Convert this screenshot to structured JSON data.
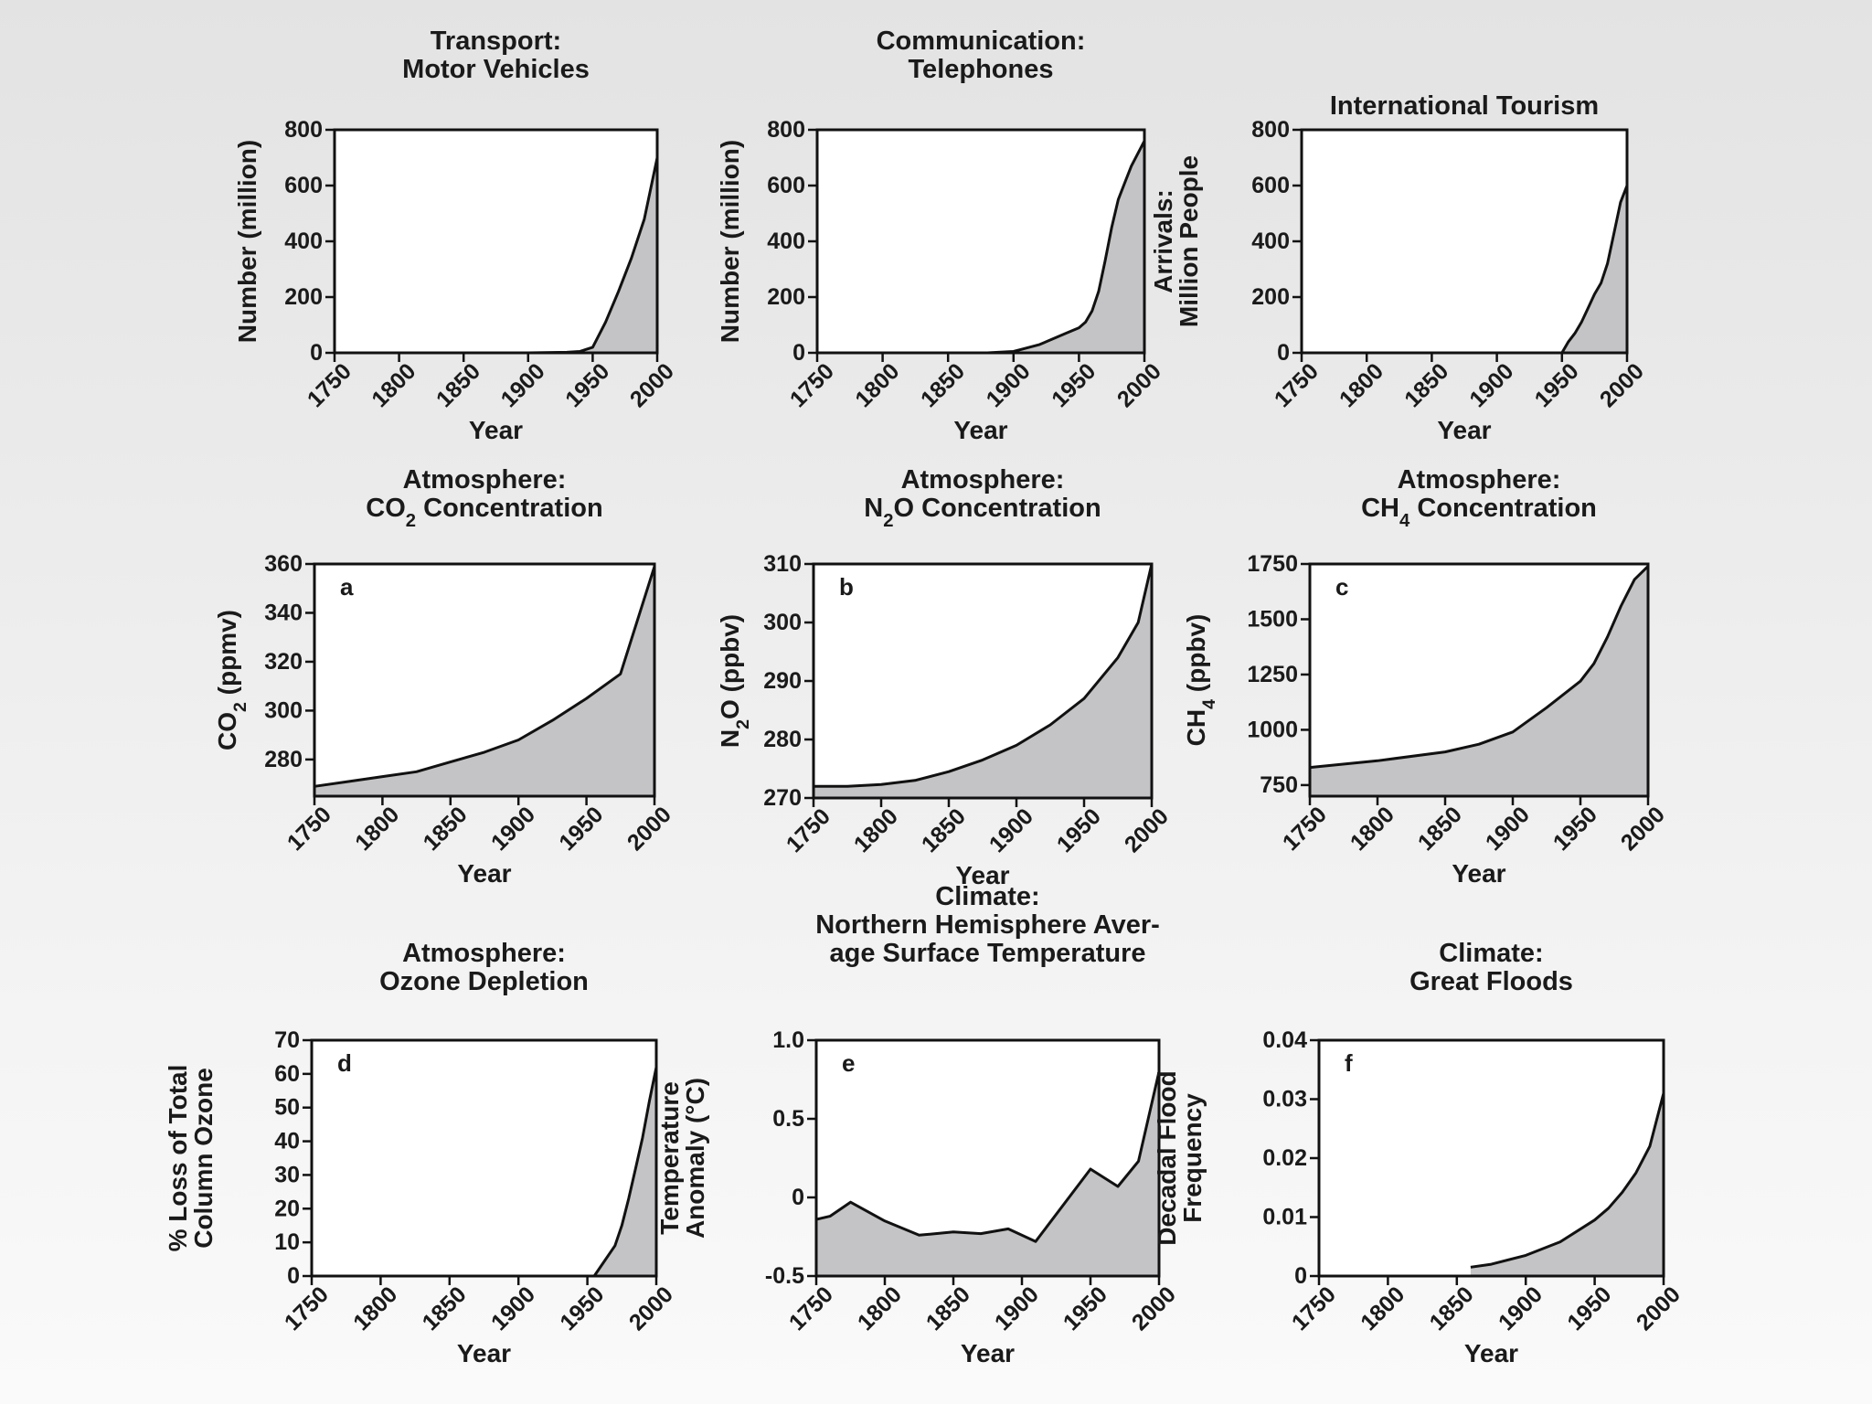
{
  "chart_data": [
    {
      "type": "area",
      "title": [
        "Transport:",
        "Motor Vehicles"
      ],
      "xlabel": "Year",
      "ylabel": [
        "Number (million)"
      ],
      "xlim": [
        1750,
        2000
      ],
      "ylim": [
        0,
        800
      ],
      "xticks": [
        "1750",
        "1800",
        "1850",
        "1900",
        "1950",
        "2000"
      ],
      "yticks": [
        {
          "value": 0,
          "label": "0"
        },
        {
          "value": 200,
          "label": "200"
        },
        {
          "value": 400,
          "label": "400"
        },
        {
          "value": 600,
          "label": "600"
        },
        {
          "value": 800,
          "label": "800"
        }
      ],
      "x": [
        1750,
        1900,
        1930,
        1940,
        1950,
        1960,
        1970,
        1980,
        1990,
        2000
      ],
      "y": [
        0,
        0,
        2,
        5,
        20,
        110,
        220,
        340,
        480,
        700
      ]
    },
    {
      "type": "area",
      "title": [
        "Communication:",
        "Telephones"
      ],
      "xlabel": "Year",
      "ylabel": [
        "Number (million)"
      ],
      "xlim": [
        1750,
        2000
      ],
      "ylim": [
        0,
        800
      ],
      "xticks": [
        "1750",
        "1800",
        "1850",
        "1900",
        "1950",
        "2000"
      ],
      "yticks": [
        {
          "value": 0,
          "label": "0"
        },
        {
          "value": 200,
          "label": "200"
        },
        {
          "value": 400,
          "label": "400"
        },
        {
          "value": 600,
          "label": "600"
        },
        {
          "value": 800,
          "label": "800"
        }
      ],
      "x": [
        1750,
        1880,
        1900,
        1920,
        1940,
        1950,
        1955,
        1960,
        1965,
        1970,
        1975,
        1980,
        1985,
        1990,
        2000
      ],
      "y": [
        0,
        0,
        5,
        30,
        70,
        90,
        110,
        150,
        220,
        330,
        450,
        550,
        610,
        670,
        760
      ]
    },
    {
      "type": "area",
      "title": [
        "International Tourism"
      ],
      "xlabel": "Year",
      "ylabel": [
        "Arrivals:",
        "Million People"
      ],
      "xlim": [
        1750,
        2000
      ],
      "ylim": [
        0,
        800
      ],
      "xticks": [
        "1750",
        "1800",
        "1850",
        "1900",
        "1950",
        "2000"
      ],
      "yticks": [
        {
          "value": 0,
          "label": "0"
        },
        {
          "value": 200,
          "label": "200"
        },
        {
          "value": 400,
          "label": "400"
        },
        {
          "value": 600,
          "label": "600"
        },
        {
          "value": 800,
          "label": "800"
        }
      ],
      "x": [
        1950,
        1955,
        1960,
        1965,
        1970,
        1975,
        1980,
        1985,
        1990,
        1995,
        2000
      ],
      "y": [
        0,
        40,
        70,
        110,
        160,
        210,
        250,
        320,
        430,
        540,
        600
      ]
    },
    {
      "type": "area",
      "panel_label": "a",
      "title": [
        "Atmosphere:",
        "CO2 Concentration"
      ],
      "xlabel": "Year",
      "ylabel": [
        "CO2 (ppmv)"
      ],
      "xlim": [
        1750,
        2000
      ],
      "ylim": [
        265,
        360
      ],
      "xticks": [
        "1750",
        "1800",
        "1850",
        "1900",
        "1950",
        "2000"
      ],
      "yticks": [
        {
          "value": 280,
          "label": "280"
        },
        {
          "value": 300,
          "label": "300"
        },
        {
          "value": 320,
          "label": "320"
        },
        {
          "value": 340,
          "label": "340"
        },
        {
          "value": 360,
          "label": "360"
        }
      ],
      "x": [
        1750,
        1775,
        1800,
        1825,
        1850,
        1875,
        1900,
        1925,
        1950,
        1975,
        2000
      ],
      "y": [
        269,
        271,
        273,
        275,
        279,
        283,
        288,
        296,
        305,
        315,
        359
      ]
    },
    {
      "type": "area",
      "panel_label": "b",
      "title": [
        "Atmosphere:",
        "N2O Concentration"
      ],
      "xlabel": "Year",
      "ylabel": [
        "N2O (ppbv)"
      ],
      "xlim": [
        1750,
        2000
      ],
      "ylim": [
        270,
        310
      ],
      "xticks": [
        "1750",
        "1800",
        "1850",
        "1900",
        "1950",
        "2000"
      ],
      "yticks": [
        {
          "value": 270,
          "label": "270"
        },
        {
          "value": 280,
          "label": "280"
        },
        {
          "value": 290,
          "label": "290"
        },
        {
          "value": 300,
          "label": "300"
        },
        {
          "value": 310,
          "label": "310"
        }
      ],
      "x": [
        1750,
        1775,
        1800,
        1825,
        1850,
        1875,
        1900,
        1925,
        1950,
        1975,
        1990,
        2000
      ],
      "y": [
        272,
        272,
        272.3,
        273,
        274.5,
        276.5,
        279,
        282.5,
        287,
        294,
        300,
        310
      ]
    },
    {
      "type": "area",
      "panel_label": "c",
      "title": [
        "Atmosphere:",
        "CH4 Concentration"
      ],
      "xlabel": "Year",
      "ylabel": [
        "CH4 (ppbv)"
      ],
      "xlim": [
        1750,
        2000
      ],
      "ylim": [
        700,
        1750
      ],
      "xticks": [
        "1750",
        "1800",
        "1850",
        "1900",
        "1950",
        "2000"
      ],
      "yticks": [
        {
          "value": 750,
          "label": "750"
        },
        {
          "value": 1000,
          "label": "1000"
        },
        {
          "value": 1250,
          "label": "1250"
        },
        {
          "value": 1500,
          "label": "1500"
        },
        {
          "value": 1750,
          "label": "1750"
        }
      ],
      "x": [
        1750,
        1800,
        1850,
        1875,
        1900,
        1925,
        1950,
        1960,
        1970,
        1980,
        1990,
        2000
      ],
      "y": [
        830,
        860,
        900,
        935,
        990,
        1100,
        1220,
        1300,
        1420,
        1560,
        1680,
        1740
      ]
    },
    {
      "type": "area",
      "panel_label": "d",
      "title": [
        "Atmosphere:",
        "Ozone Depletion"
      ],
      "xlabel": "Year",
      "ylabel": [
        "% Loss of Total",
        "Column Ozone"
      ],
      "xlim": [
        1750,
        2000
      ],
      "ylim": [
        0,
        70
      ],
      "xticks": [
        "1750",
        "1800",
        "1850",
        "1900",
        "1950",
        "2000"
      ],
      "yticks": [
        {
          "value": 0,
          "label": "0"
        },
        {
          "value": 10,
          "label": "10"
        },
        {
          "value": 20,
          "label": "20"
        },
        {
          "value": 30,
          "label": "30"
        },
        {
          "value": 40,
          "label": "40"
        },
        {
          "value": 50,
          "label": "50"
        },
        {
          "value": 60,
          "label": "60"
        },
        {
          "value": 70,
          "label": "70"
        }
      ],
      "x": [
        1750,
        1955,
        1960,
        1970,
        1975,
        1980,
        1985,
        1990,
        1995,
        2000
      ],
      "y": [
        0,
        0,
        3,
        9,
        15,
        23,
        32,
        41,
        52,
        62
      ]
    },
    {
      "type": "area",
      "panel_label": "e",
      "title": [
        "Climate:",
        "Northern Hemisphere Aver-",
        "age Surface Temperature"
      ],
      "xlabel": "Year",
      "ylabel": [
        "Temperature",
        "Anomaly (°C)"
      ],
      "xlim": [
        1750,
        2000
      ],
      "ylim": [
        -0.5,
        1.0
      ],
      "xticks": [
        "1750",
        "1800",
        "1850",
        "1900",
        "1950",
        "2000"
      ],
      "yticks": [
        {
          "value": -0.5,
          "label": "-0.5"
        },
        {
          "value": 0,
          "label": "0"
        },
        {
          "value": 0.5,
          "label": "0.5"
        },
        {
          "value": 1.0,
          "label": "1.0"
        }
      ],
      "x": [
        1750,
        1760,
        1775,
        1800,
        1825,
        1850,
        1870,
        1890,
        1910,
        1950,
        1970,
        1985,
        2000
      ],
      "y": [
        -0.14,
        -0.12,
        -0.03,
        -0.15,
        -0.24,
        -0.22,
        -0.23,
        -0.2,
        -0.28,
        0.18,
        0.07,
        0.23,
        0.8
      ]
    },
    {
      "type": "area",
      "panel_label": "f",
      "title": [
        "Climate:",
        "Great Floods"
      ],
      "xlabel": "Year",
      "ylabel": [
        "Decadal Flood",
        "Frequency"
      ],
      "xlim": [
        1750,
        2000
      ],
      "ylim": [
        0,
        0.04
      ],
      "xticks": [
        "1750",
        "1800",
        "1850",
        "1900",
        "1950",
        "2000"
      ],
      "yticks": [
        {
          "value": 0,
          "label": "0"
        },
        {
          "value": 0.01,
          "label": "0.01"
        },
        {
          "value": 0.02,
          "label": "0.02"
        },
        {
          "value": 0.03,
          "label": "0.03"
        },
        {
          "value": 0.04,
          "label": "0.04"
        }
      ],
      "x": [
        1860,
        1875,
        1900,
        1925,
        1950,
        1960,
        1970,
        1980,
        1990,
        2000
      ],
      "y": [
        0.0015,
        0.002,
        0.0035,
        0.0058,
        0.0095,
        0.0115,
        0.0142,
        0.0175,
        0.022,
        0.031
      ]
    }
  ]
}
